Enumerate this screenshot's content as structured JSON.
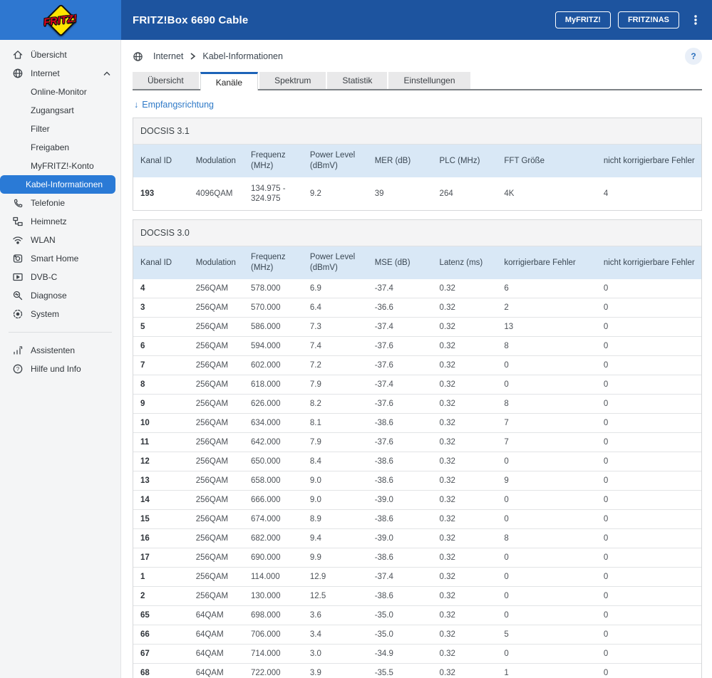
{
  "header": {
    "logo_text": "FRITZ!",
    "title": "FRITZ!Box 6690 Cable",
    "buttons": [
      {
        "label": "MyFRITZ!"
      },
      {
        "label": "FRITZ!NAS"
      }
    ],
    "menu_icon": "kebab-menu-icon"
  },
  "sidebar": {
    "items": [
      {
        "label": "Übersicht",
        "icon": "home-icon"
      },
      {
        "label": "Internet",
        "icon": "globe-icon",
        "expanded": true,
        "children": [
          {
            "label": "Online-Monitor"
          },
          {
            "label": "Zugangsart"
          },
          {
            "label": "Filter"
          },
          {
            "label": "Freigaben"
          },
          {
            "label": "MyFRITZ!-Konto"
          },
          {
            "label": "Kabel-Informationen",
            "active": true
          }
        ]
      },
      {
        "label": "Telefonie",
        "icon": "phone-icon"
      },
      {
        "label": "Heimnetz",
        "icon": "homenet-icon"
      },
      {
        "label": "WLAN",
        "icon": "wifi-icon"
      },
      {
        "label": "Smart Home",
        "icon": "smarthome-icon"
      },
      {
        "label": "DVB-C",
        "icon": "tv-icon"
      },
      {
        "label": "Diagnose",
        "icon": "diagnose-icon"
      },
      {
        "label": "System",
        "icon": "system-icon"
      },
      {
        "divider": true
      },
      {
        "label": "Assistenten",
        "icon": "assistant-icon"
      },
      {
        "label": "Hilfe und Info",
        "icon": "helpcircle-icon"
      }
    ]
  },
  "breadcrumb": {
    "icon": "globe-icon",
    "items": [
      "Internet",
      "Kabel-Informationen"
    ]
  },
  "help_button": {
    "label": "?"
  },
  "tabs": {
    "items": [
      {
        "label": "Übersicht"
      },
      {
        "label": "Kanäle",
        "active": true
      },
      {
        "label": "Spektrum"
      },
      {
        "label": "Statistik"
      },
      {
        "label": "Einstellungen"
      }
    ]
  },
  "filter_link": {
    "icon": "arrow-down-icon",
    "arrow": "↓",
    "label": "Empfangsrichtung"
  },
  "tables": {
    "docsis31": {
      "title": "DOCSIS 3.1",
      "columns": [
        "Kanal ID",
        "Modulation",
        "Frequenz (MHz)",
        "Power Level (dBmV)",
        "MER (dB)",
        "PLC (MHz)",
        "FFT Größe",
        "nicht korrigierbare Fehler"
      ],
      "rows": [
        [
          "193",
          "4096QAM",
          "134.975 - 324.975",
          "9.2",
          "39",
          "264",
          "4K",
          "4"
        ]
      ]
    },
    "docsis30": {
      "title": "DOCSIS 3.0",
      "columns": [
        "Kanal ID",
        "Modulation",
        "Frequenz (MHz)",
        "Power Level (dBmV)",
        "MSE (dB)",
        "Latenz (ms)",
        "korrigierbare Fehler",
        "nicht korrigierbare Fehler"
      ],
      "rows": [
        [
          "4",
          "256QAM",
          "578.000",
          "6.9",
          "-37.4",
          "0.32",
          "6",
          "0"
        ],
        [
          "3",
          "256QAM",
          "570.000",
          "6.4",
          "-36.6",
          "0.32",
          "2",
          "0"
        ],
        [
          "5",
          "256QAM",
          "586.000",
          "7.3",
          "-37.4",
          "0.32",
          "13",
          "0"
        ],
        [
          "6",
          "256QAM",
          "594.000",
          "7.4",
          "-37.6",
          "0.32",
          "8",
          "0"
        ],
        [
          "7",
          "256QAM",
          "602.000",
          "7.2",
          "-37.6",
          "0.32",
          "0",
          "0"
        ],
        [
          "8",
          "256QAM",
          "618.000",
          "7.9",
          "-37.4",
          "0.32",
          "0",
          "0"
        ],
        [
          "9",
          "256QAM",
          "626.000",
          "8.2",
          "-37.6",
          "0.32",
          "8",
          "0"
        ],
        [
          "10",
          "256QAM",
          "634.000",
          "8.1",
          "-38.6",
          "0.32",
          "7",
          "0"
        ],
        [
          "11",
          "256QAM",
          "642.000",
          "7.9",
          "-37.6",
          "0.32",
          "7",
          "0"
        ],
        [
          "12",
          "256QAM",
          "650.000",
          "8.4",
          "-38.6",
          "0.32",
          "0",
          "0"
        ],
        [
          "13",
          "256QAM",
          "658.000",
          "9.0",
          "-38.6",
          "0.32",
          "9",
          "0"
        ],
        [
          "14",
          "256QAM",
          "666.000",
          "9.0",
          "-39.0",
          "0.32",
          "0",
          "0"
        ],
        [
          "15",
          "256QAM",
          "674.000",
          "8.9",
          "-38.6",
          "0.32",
          "0",
          "0"
        ],
        [
          "16",
          "256QAM",
          "682.000",
          "9.4",
          "-39.0",
          "0.32",
          "8",
          "0"
        ],
        [
          "17",
          "256QAM",
          "690.000",
          "9.9",
          "-38.6",
          "0.32",
          "0",
          "0"
        ],
        [
          "1",
          "256QAM",
          "114.000",
          "12.9",
          "-37.4",
          "0.32",
          "0",
          "0"
        ],
        [
          "2",
          "256QAM",
          "130.000",
          "12.5",
          "-38.6",
          "0.32",
          "0",
          "0"
        ],
        [
          "65",
          "64QAM",
          "698.000",
          "3.6",
          "-35.0",
          "0.32",
          "0",
          "0"
        ],
        [
          "66",
          "64QAM",
          "706.000",
          "3.4",
          "-35.0",
          "0.32",
          "5",
          "0"
        ],
        [
          "67",
          "64QAM",
          "714.000",
          "3.0",
          "-34.9",
          "0.32",
          "0",
          "0"
        ],
        [
          "68",
          "64QAM",
          "722.000",
          "3.9",
          "-35.5",
          "0.32",
          "1",
          "0"
        ]
      ]
    }
  },
  "colors": {
    "header_blue": "#1d549f",
    "logo_area_blue": "#2e77d0",
    "selected_blue": "#2a7ad6",
    "tab_accent_blue": "#1c63b8",
    "link_blue": "#2e79c7",
    "table_header_blue": "#d9e8f6"
  }
}
